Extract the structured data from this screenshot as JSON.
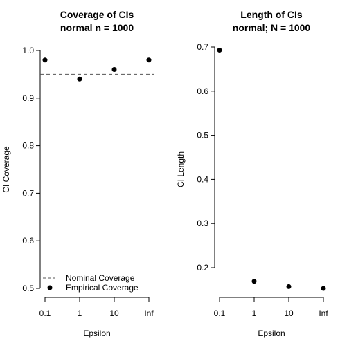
{
  "chart_data": [
    {
      "type": "scatter",
      "title": "Coverage of CIs",
      "subtitle": "normal n = 1000",
      "xlabel": "Epsilon",
      "ylabel": "CI Coverage",
      "categories": [
        "0.1",
        "1",
        "10",
        "Inf"
      ],
      "series": [
        {
          "name": "Empirical Coverage",
          "values": [
            0.98,
            0.94,
            0.96,
            0.98
          ]
        }
      ],
      "reference_line": {
        "name": "Nominal Coverage",
        "y": 0.95,
        "style": "dashed"
      },
      "ylim": [
        0.5,
        1.0
      ],
      "yticks": [
        "0.5",
        "0.6",
        "0.7",
        "0.8",
        "0.9",
        "1.0"
      ],
      "legend": {
        "position": "bottom",
        "entries": [
          "Nominal Coverage",
          "Empirical Coverage"
        ]
      },
      "grid": false
    },
    {
      "type": "scatter",
      "title": "Length of CIs",
      "subtitle": "normal; N = 1000",
      "xlabel": "Epsilon",
      "ylabel": "CI Length",
      "categories": [
        "0.1",
        "1",
        "10",
        "Inf"
      ],
      "series": [
        {
          "values": [
            0.693,
            0.169,
            0.157,
            0.153
          ]
        }
      ],
      "ylim": [
        0.2,
        0.7
      ],
      "yticks": [
        "0.2",
        "0.3",
        "0.4",
        "0.5",
        "0.6",
        "0.7"
      ],
      "grid": false
    }
  ],
  "colors": {
    "points": "#000000",
    "reference_line": "#555555",
    "axes": "#000000"
  }
}
